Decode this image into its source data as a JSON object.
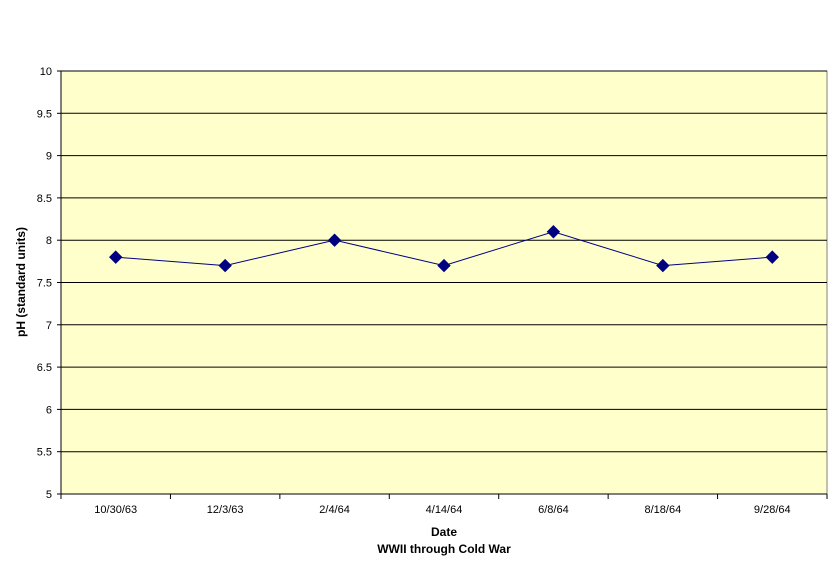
{
  "chart_data": {
    "type": "line",
    "categories": [
      "10/30/63",
      "12/3/63",
      "2/4/64",
      "4/14/64",
      "6/8/64",
      "8/18/64",
      "9/28/64"
    ],
    "series": [
      {
        "values": [
          7.8,
          7.7,
          8.0,
          7.7,
          8.1,
          7.7,
          7.8
        ]
      }
    ],
    "xlabel": "Date",
    "xlabel2": "WWII through Cold War",
    "ylabel": "pH (standard units)",
    "ylim": [
      5,
      10
    ],
    "yticks": [
      "5",
      "5.5",
      "6",
      "6.5",
      "7",
      "7.5",
      "8",
      "8.5",
      "9",
      "9.5",
      "10"
    ],
    "grid": true,
    "legend": "none",
    "colors": {
      "plot_background": "#FFFFCC",
      "line": "#000080",
      "marker": "#000080",
      "gridline": "#000000"
    }
  }
}
